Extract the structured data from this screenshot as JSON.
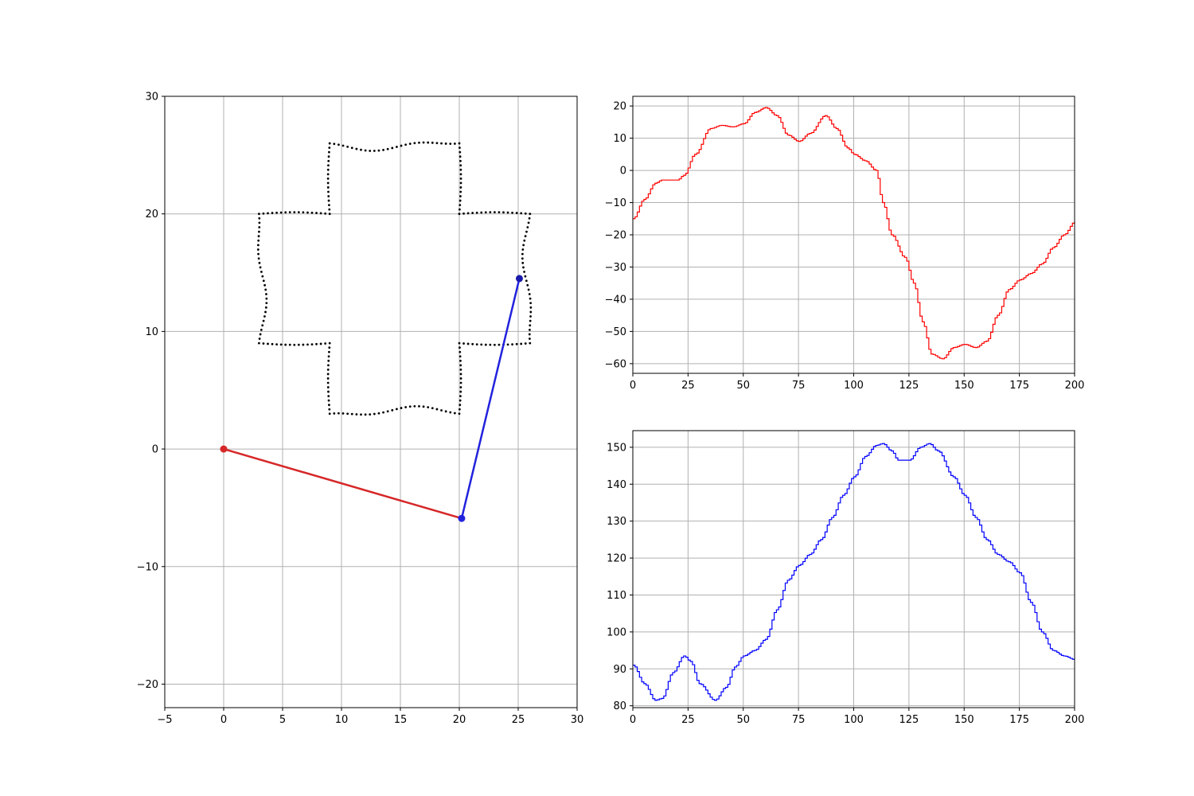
{
  "chart_data": [
    {
      "type": "scatter",
      "xlim": [
        -5,
        30
      ],
      "ylim": [
        -22,
        30
      ],
      "grid": true,
      "xticks": [
        -5,
        0,
        5,
        10,
        15,
        20,
        25,
        30
      ],
      "yticks": [
        -20,
        -10,
        0,
        10,
        20,
        30
      ],
      "xtick_labels": [
        "−5",
        "0",
        "5",
        "10",
        "15",
        "20",
        "25",
        "30"
      ],
      "ytick_labels": [
        "−20",
        "−10",
        "0",
        "10",
        "20",
        "30"
      ],
      "target_curve": {
        "center": [
          14.5,
          14.5
        ],
        "shape": "rounded-cross",
        "arm_half_width": 5.5,
        "arm_reach": 11.5,
        "style": "dotted",
        "color": "#000000"
      },
      "arm": {
        "base": [
          0,
          0
        ],
        "joint": [
          20.2,
          -5.9
        ],
        "end_effector": [
          25.1,
          14.5
        ],
        "link1_color": "#d62728",
        "link2_color": "#2222dd"
      }
    },
    {
      "type": "line",
      "drawstyle": "steps",
      "color": "#ff0000",
      "xlim": [
        0,
        200
      ],
      "ylim": [
        -63,
        23
      ],
      "grid": true,
      "xticks": [
        0,
        25,
        50,
        75,
        100,
        125,
        150,
        175,
        200
      ],
      "yticks": [
        -60,
        -50,
        -40,
        -30,
        -20,
        -10,
        0,
        10,
        20
      ],
      "xtick_labels": [
        "0",
        "25",
        "50",
        "75",
        "100",
        "125",
        "150",
        "175",
        "200"
      ],
      "ytick_labels": [
        "−60",
        "−50",
        "−40",
        "−30",
        "−20",
        "−10",
        "0",
        "10",
        "20"
      ],
      "x": [
        0,
        5,
        10,
        13,
        15,
        20,
        23,
        28,
        35,
        40,
        45,
        50,
        55,
        60,
        65,
        70,
        75,
        80,
        87,
        92,
        97,
        100,
        105,
        110,
        113,
        117,
        123,
        127,
        131,
        135,
        140,
        145,
        150,
        155,
        160,
        165,
        170,
        175,
        180,
        185,
        190,
        195,
        200
      ],
      "y": [
        -15,
        -9,
        -4,
        -3,
        -3,
        -3,
        -1.5,
        5,
        13,
        14,
        13.5,
        14.5,
        18,
        19.5,
        17,
        11,
        9,
        11.5,
        17,
        13,
        7,
        5,
        3,
        0,
        -10,
        -20,
        -27,
        -35,
        -47,
        -57,
        -58.5,
        -55,
        -54,
        -55,
        -53,
        -45,
        -37,
        -34,
        -32,
        -29,
        -24,
        -20,
        -16
      ]
    },
    {
      "type": "line",
      "drawstyle": "steps",
      "color": "#0000ff",
      "xlim": [
        0,
        200
      ],
      "ylim": [
        79.5,
        154.5
      ],
      "grid": true,
      "xticks": [
        0,
        25,
        50,
        75,
        100,
        125,
        150,
        175,
        200
      ],
      "yticks": [
        80,
        90,
        100,
        110,
        120,
        130,
        140,
        150
      ],
      "xtick_labels": [
        "0",
        "25",
        "50",
        "75",
        "100",
        "125",
        "150",
        "175",
        "200"
      ],
      "ytick_labels": [
        "80",
        "90",
        "100",
        "110",
        "120",
        "130",
        "140",
        "150"
      ],
      "x": [
        0,
        5,
        10,
        13,
        18,
        23,
        26,
        30,
        37,
        42,
        46,
        50,
        55,
        60,
        65,
        70,
        75,
        80,
        85,
        90,
        95,
        100,
        105,
        110,
        113,
        117,
        120,
        125,
        130,
        134,
        138,
        145,
        150,
        155,
        160,
        165,
        170,
        175,
        180,
        185,
        190,
        195,
        200
      ],
      "y": [
        91,
        86,
        81.5,
        82,
        89,
        93.5,
        92,
        86,
        81.5,
        85,
        90.5,
        93.5,
        95,
        98,
        106,
        114,
        118,
        121,
        125,
        131,
        137,
        142,
        147.5,
        150.5,
        151,
        149,
        146.5,
        146.5,
        150,
        151,
        149,
        142,
        137,
        131,
        125,
        121,
        119,
        116,
        108,
        100,
        95,
        93.5,
        92.5
      ]
    }
  ]
}
